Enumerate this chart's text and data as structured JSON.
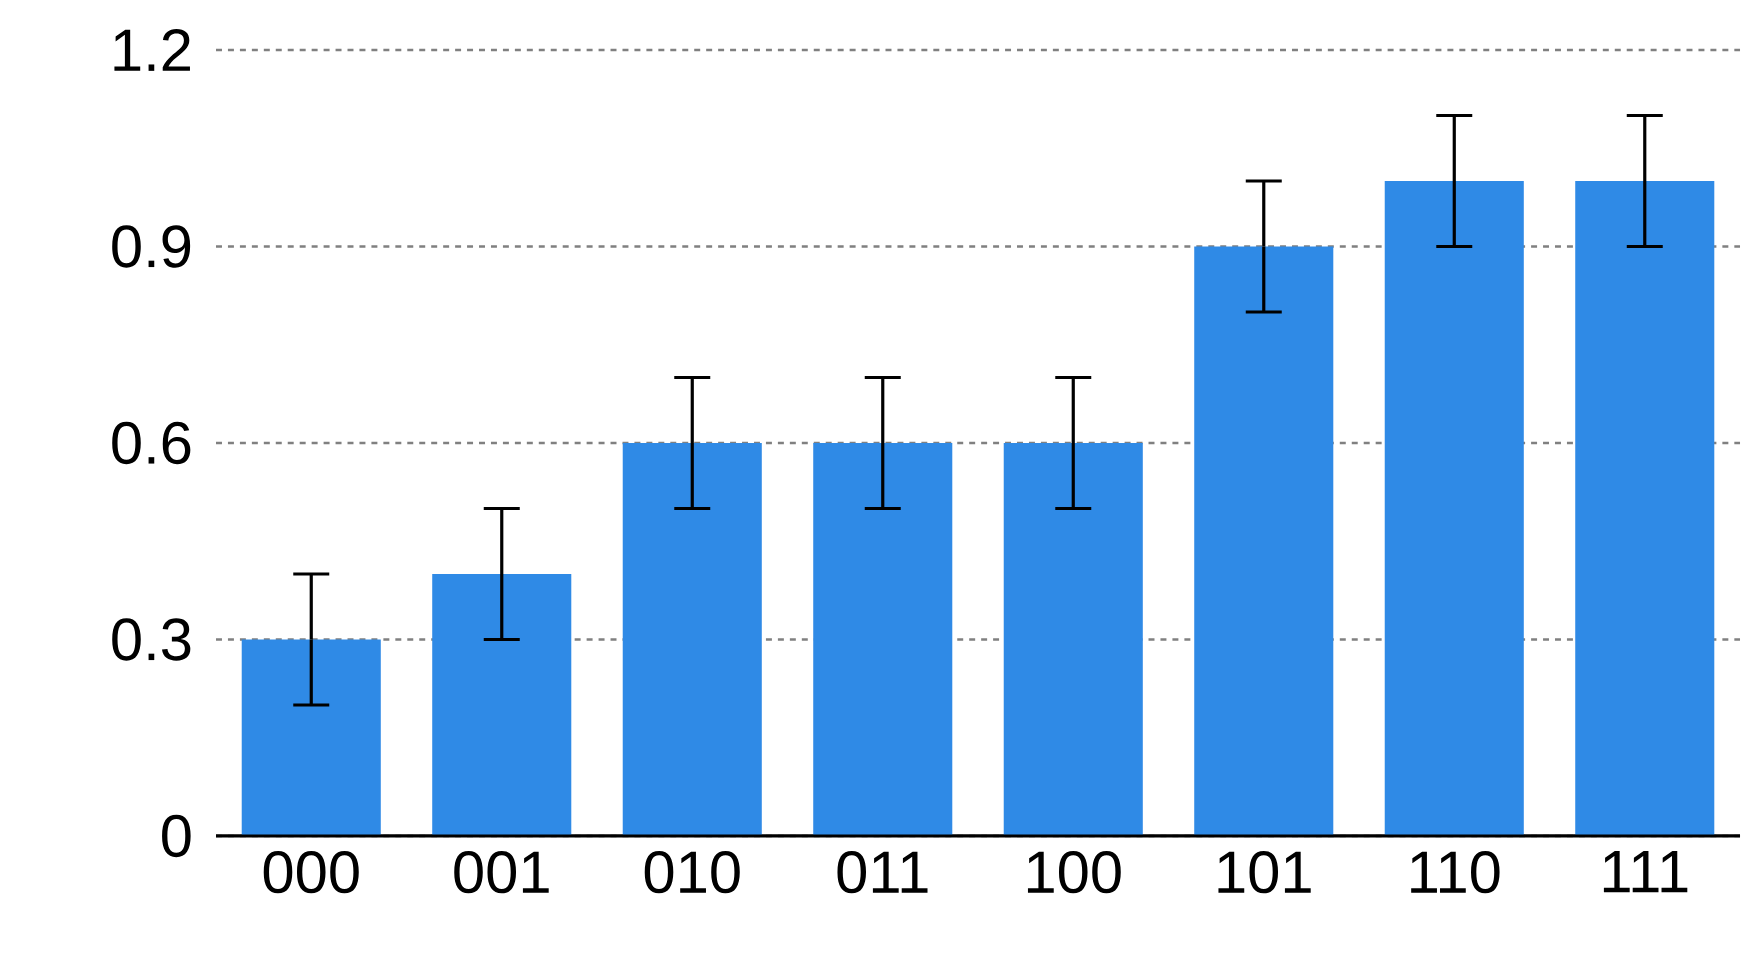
{
  "chart_data": {
    "type": "bar",
    "categories": [
      "000",
      "001",
      "010",
      "011",
      "100",
      "101",
      "110",
      "111"
    ],
    "values": [
      0.3,
      0.4,
      0.6,
      0.6,
      0.6,
      0.9,
      1.0,
      1.0
    ],
    "errors": [
      0.1,
      0.1,
      0.1,
      0.1,
      0.1,
      0.1,
      0.1,
      0.1
    ],
    "color": "#2f8ae6",
    "ylim": [
      0,
      1.2
    ],
    "yticks": [
      0,
      0.3,
      0.6,
      0.9,
      1.2
    ],
    "grid": "y"
  }
}
